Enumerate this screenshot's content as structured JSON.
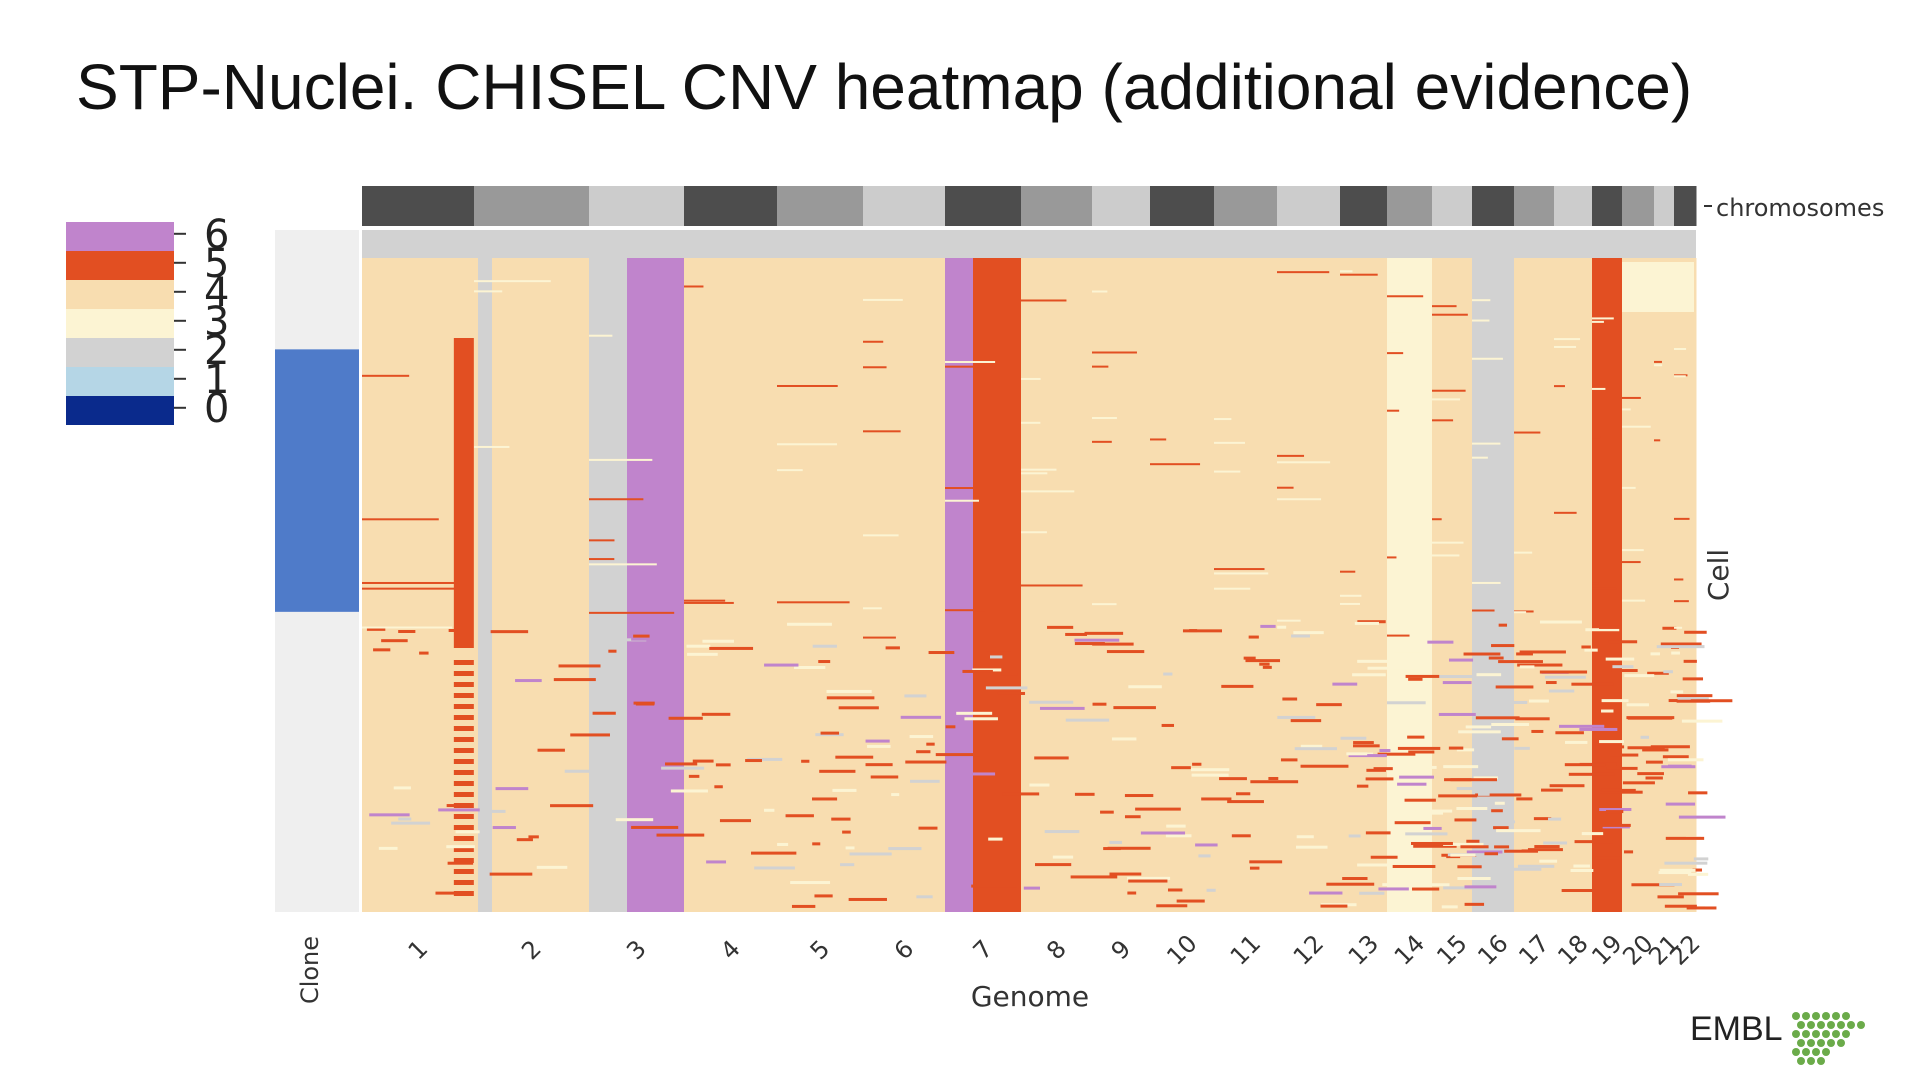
{
  "slide": {
    "title": "STP-Nuclei. CHISEL CNV heatmap (additional evidence)",
    "logo_text": "EMBL"
  },
  "chart_data": {
    "type": "heatmap",
    "title": "",
    "xlabel": "Genome",
    "ylabel": "Cell",
    "clone_label": "Clone",
    "chromosome_track_label": "chromosomes",
    "colorbar": {
      "ticks": [
        0,
        1,
        2,
        3,
        4,
        5,
        6
      ],
      "colors": {
        "0": "#0a2a8c",
        "1": "#b5d6e6",
        "2": "#d2d2d2",
        "3": "#fcf4d3",
        "4": "#f8ddb0",
        "5": "#e24f22",
        "6": "#c084cc"
      }
    },
    "chromosomes": [
      "1",
      "2",
      "3",
      "4",
      "5",
      "6",
      "7",
      "8",
      "9",
      "10",
      "11",
      "12",
      "13",
      "14",
      "15",
      "16",
      "17",
      "18",
      "19",
      "20",
      "21",
      "22"
    ],
    "chromosome_track_colors": [
      "#4d4d4d",
      "#999999",
      "#cccccc"
    ],
    "clone_colors": {
      "clone_a": "#4f7bc9",
      "other": "#efefef"
    },
    "clone_blocks": [
      {
        "clone": "other",
        "start": 0.0,
        "end": 0.175
      },
      {
        "clone": "clone_a",
        "start": 0.175,
        "end": 0.56
      },
      {
        "clone": "other",
        "start": 0.56,
        "end": 1.0
      }
    ],
    "dominant_state_by_chromosome": {
      "1": 4,
      "2": 4,
      "3": 6,
      "4": 4,
      "5": 4,
      "6": 4,
      "7": 5,
      "8": 4,
      "9": 4,
      "10": 4,
      "11": 4,
      "12": 4,
      "13": 4,
      "14": 3,
      "15": 4,
      "16": 2,
      "17": 4,
      "18": 4,
      "19": 5,
      "20": 4,
      "21": 4,
      "22": 4
    }
  }
}
